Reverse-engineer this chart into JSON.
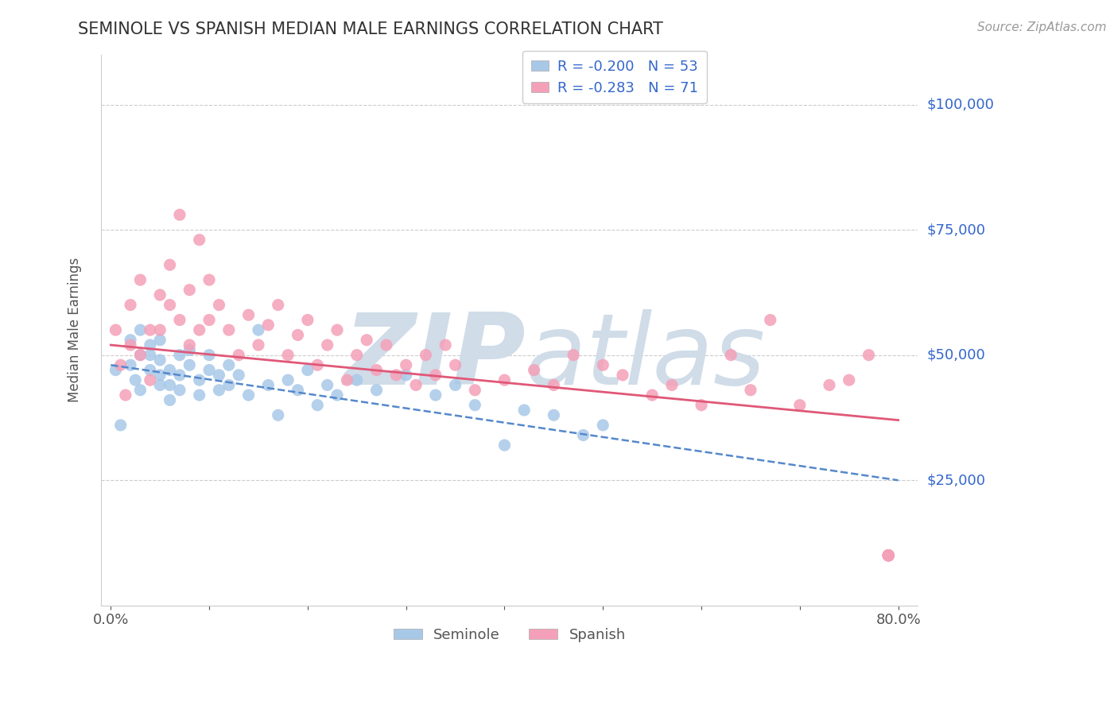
{
  "title": "SEMINOLE VS SPANISH MEDIAN MALE EARNINGS CORRELATION CHART",
  "source_text": "Source: ZipAtlas.com",
  "ylabel": "Median Male Earnings",
  "xlim": [
    -0.01,
    0.82
  ],
  "ylim": [
    0,
    110000
  ],
  "yticks": [
    0,
    25000,
    50000,
    75000,
    100000
  ],
  "ytick_labels": [
    "",
    "$25,000",
    "$50,000",
    "$75,000",
    "$100,000"
  ],
  "xtick_positions": [
    0.0,
    0.1,
    0.2,
    0.3,
    0.4,
    0.5,
    0.6,
    0.7,
    0.8
  ],
  "xtick_labels": [
    "0.0%",
    "",
    "",
    "",
    "",
    "",
    "",
    "",
    "80.0%"
  ],
  "background_color": "#ffffff",
  "grid_color": "#cccccc",
  "seminole_color": "#a8c8e8",
  "spanish_color": "#f4a0b8",
  "seminole_trend_color": "#5588cc",
  "spanish_trend_color": "#e05878",
  "watermark_color": "#d0dce8",
  "legend_color": "#3366cc",
  "seminole_R": "-0.200",
  "seminole_N": "53",
  "spanish_R": "-0.283",
  "spanish_N": "71",
  "seminole_x": [
    0.005,
    0.01,
    0.02,
    0.02,
    0.025,
    0.03,
    0.03,
    0.03,
    0.04,
    0.04,
    0.04,
    0.05,
    0.05,
    0.05,
    0.05,
    0.06,
    0.06,
    0.06,
    0.07,
    0.07,
    0.07,
    0.08,
    0.08,
    0.09,
    0.09,
    0.1,
    0.1,
    0.11,
    0.11,
    0.12,
    0.12,
    0.13,
    0.14,
    0.15,
    0.16,
    0.17,
    0.18,
    0.19,
    0.2,
    0.21,
    0.22,
    0.23,
    0.25,
    0.27,
    0.3,
    0.33,
    0.35,
    0.37,
    0.4,
    0.42,
    0.45,
    0.48,
    0.5
  ],
  "seminole_y": [
    47000,
    36000,
    48000,
    53000,
    45000,
    50000,
    55000,
    43000,
    47000,
    50000,
    52000,
    44000,
    46000,
    49000,
    53000,
    41000,
    44000,
    47000,
    43000,
    46000,
    50000,
    48000,
    51000,
    42000,
    45000,
    47000,
    50000,
    43000,
    46000,
    44000,
    48000,
    46000,
    42000,
    55000,
    44000,
    38000,
    45000,
    43000,
    47000,
    40000,
    44000,
    42000,
    45000,
    43000,
    46000,
    42000,
    44000,
    40000,
    32000,
    39000,
    38000,
    34000,
    36000
  ],
  "spanish_x": [
    0.005,
    0.01,
    0.015,
    0.02,
    0.02,
    0.03,
    0.03,
    0.04,
    0.04,
    0.05,
    0.05,
    0.06,
    0.06,
    0.07,
    0.07,
    0.08,
    0.08,
    0.09,
    0.09,
    0.1,
    0.1,
    0.11,
    0.12,
    0.13,
    0.14,
    0.15,
    0.16,
    0.17,
    0.18,
    0.19,
    0.2,
    0.21,
    0.22,
    0.23,
    0.24,
    0.25,
    0.26,
    0.27,
    0.28,
    0.29,
    0.3,
    0.31,
    0.32,
    0.33,
    0.34,
    0.35,
    0.37,
    0.4,
    0.43,
    0.45,
    0.47,
    0.5,
    0.52,
    0.55,
    0.57,
    0.6,
    0.63,
    0.65,
    0.67,
    0.7,
    0.73,
    0.75,
    0.77,
    0.79,
    0.79,
    0.79,
    0.79,
    0.79,
    0.79,
    0.79,
    0.79
  ],
  "spanish_y": [
    55000,
    48000,
    42000,
    60000,
    52000,
    50000,
    65000,
    55000,
    45000,
    55000,
    62000,
    60000,
    68000,
    57000,
    78000,
    52000,
    63000,
    55000,
    73000,
    57000,
    65000,
    60000,
    55000,
    50000,
    58000,
    52000,
    56000,
    60000,
    50000,
    54000,
    57000,
    48000,
    52000,
    55000,
    45000,
    50000,
    53000,
    47000,
    52000,
    46000,
    48000,
    44000,
    50000,
    46000,
    52000,
    48000,
    43000,
    45000,
    47000,
    44000,
    50000,
    48000,
    46000,
    42000,
    44000,
    40000,
    50000,
    43000,
    57000,
    40000,
    44000,
    45000,
    50000,
    10000,
    10000,
    10000,
    10000,
    10000,
    10000,
    10000,
    10000
  ],
  "sem_trend_x0": 0.0,
  "sem_trend_y0": 48000,
  "sem_trend_x1": 0.8,
  "sem_trend_y1": 25000,
  "spa_trend_x0": 0.0,
  "spa_trend_y0": 52000,
  "spa_trend_x1": 0.8,
  "spa_trend_y1": 37000
}
